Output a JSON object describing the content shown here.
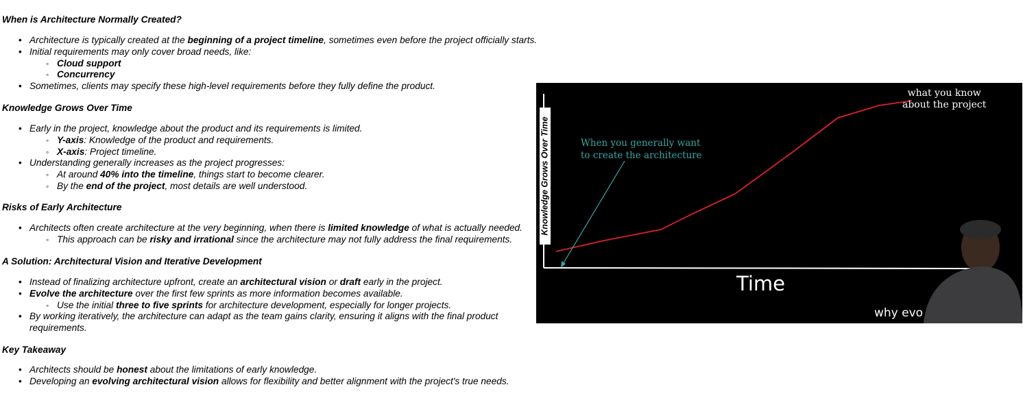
{
  "sections": [
    {
      "heading": "When is Architecture Normally Created?",
      "items": [
        {
          "a": "Architecture is typically created at the ",
          "b": "beginning of a project timeline",
          "c": ", sometimes even before the project officially starts."
        },
        {
          "a": "Initial requirements may only cover broad needs, like:"
        },
        {
          "sub": true,
          "b": "Cloud support"
        },
        {
          "sub": true,
          "b": "Concurrency"
        },
        {
          "a": "Sometimes, clients may specify these high-level requirements before they fully define the product."
        }
      ]
    },
    {
      "heading": "Knowledge Grows Over Time",
      "items": [
        {
          "a": "Early in the project, knowledge about the product and its requirements is limited."
        },
        {
          "sub": true,
          "b": "Y-axis",
          "c": ": Knowledge of the product and requirements."
        },
        {
          "sub": true,
          "b": "X-axis",
          "c": ": Project timeline."
        },
        {
          "a": "Understanding generally increases as the project progresses:"
        },
        {
          "sub": true,
          "a": "At around ",
          "b": "40% into the timeline",
          "c": ", things start to become clearer."
        },
        {
          "sub": true,
          "a": "By the ",
          "b": "end of the project",
          "c": ", most details are well understood."
        }
      ]
    },
    {
      "heading": "Risks of Early Architecture",
      "items": [
        {
          "a": "Architects often create architecture at the very beginning, when there is ",
          "b": "limited knowledge",
          "c": " of what is actually needed."
        },
        {
          "sub": true,
          "a": "This approach can be ",
          "b": "risky and irrational",
          "c": " since the architecture may not fully address the final requirements."
        }
      ]
    },
    {
      "heading": "A Solution: Architectural Vision and Iterative Development",
      "items": [
        {
          "a": "Instead of finalizing architecture upfront, create an ",
          "b": "architectural vision",
          "c": " or ",
          "d": "draft",
          "e": " early in the project."
        },
        {
          "b": "Evolve the architecture",
          "c": " over the first few sprints as more information becomes available."
        },
        {
          "sub": true,
          "a": "Use the initial ",
          "b": "three to five sprints",
          "c": " for architecture development, especially for longer projects."
        },
        {
          "a": "By working iteratively, the architecture can adapt as the team gains clarity, ensuring it aligns with the final product requirements."
        }
      ]
    },
    {
      "heading": "Key Takeaway",
      "items": [
        {
          "a": "Architects should be ",
          "b": "honest",
          "c": " about the limitations of early knowledge."
        },
        {
          "a": "Developing an ",
          "b": "evolving architectural vision",
          "c": " allows for flexibility and better alignment with the project's true needs."
        }
      ]
    }
  ],
  "video": {
    "y_axis_label": "Knowledge Grows Over Time",
    "x_axis_label": "Time",
    "annotation_know_line1": "what you know",
    "annotation_know_line2": "about the project",
    "annotation_when_line1": "When you generally want",
    "annotation_when_line2": "to create the architecture",
    "caption_partial": "why evo",
    "colors": {
      "background": "#000000",
      "curve": "#e0202a",
      "annotation": "#36a7a0",
      "axis": "#ffffff"
    }
  }
}
